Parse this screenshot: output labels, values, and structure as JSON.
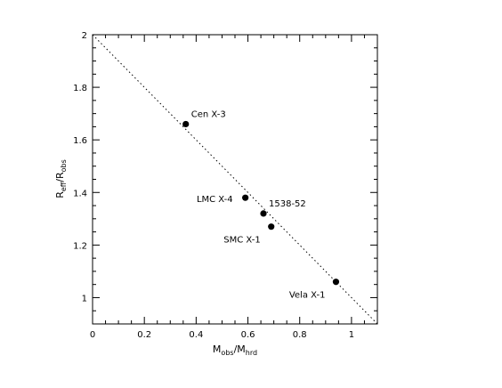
{
  "chart_data": {
    "type": "scatter",
    "xlabel": {
      "main": "M",
      "sub1": "obs",
      "sep": "/M",
      "sub2": "hrd"
    },
    "ylabel": {
      "main": "R",
      "sub1": "eff",
      "sep": "/R",
      "sub2": "obs"
    },
    "xlim": [
      0,
      1.1
    ],
    "ylim": [
      0.9,
      2.0
    ],
    "x_ticks": [
      0,
      0.2,
      0.4,
      0.6,
      0.8,
      1
    ],
    "x_tick_labels": [
      "0",
      "0.2",
      "0.4",
      "0.6",
      "0.8",
      "1"
    ],
    "y_ticks": [
      1,
      1.2,
      1.4,
      1.6,
      1.8,
      2
    ],
    "y_tick_labels": [
      "1",
      "1.2",
      "1.4",
      "1.6",
      "1.8",
      "2"
    ],
    "grid": false,
    "points": [
      {
        "label": "Cen X-3",
        "x": 0.36,
        "y": 1.66,
        "label_pos": "above-right"
      },
      {
        "label": "LMC X-4",
        "x": 0.59,
        "y": 1.38,
        "label_pos": "left"
      },
      {
        "label": "1538-52",
        "x": 0.66,
        "y": 1.32,
        "label_pos": "above-right"
      },
      {
        "label": "SMC X-1",
        "x": 0.69,
        "y": 1.27,
        "label_pos": "below-left"
      },
      {
        "label": "Vela X-1",
        "x": 0.94,
        "y": 1.06,
        "label_pos": "below-left"
      }
    ],
    "fit_line": {
      "style": "dotted",
      "x": [
        0,
        1.1
      ],
      "y": [
        2.0,
        0.9
      ]
    }
  }
}
